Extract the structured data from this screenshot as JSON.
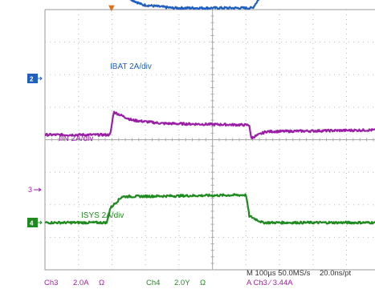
{
  "chart_data": {
    "type": "line",
    "time_per_div": "100µs",
    "sample_rate": "50.0MS/s",
    "resolution": "20.0ns/pt",
    "series": [
      {
        "name": "IBAT 2A/div",
        "color": "#1f5fbf",
        "marker": "2",
        "points": [
          [
            0,
            4.6
          ],
          [
            2.1,
            4.55
          ],
          [
            2.9,
            4.15
          ],
          [
            3.8,
            4.05
          ],
          [
            6.2,
            4.05
          ],
          [
            6.4,
            4.35
          ],
          [
            6.9,
            4.5
          ],
          [
            10,
            4.55
          ]
        ]
      },
      {
        "name": "IIN 2A/div",
        "color": "#9b1fa6",
        "marker": "",
        "points": [
          [
            0,
            0.15
          ],
          [
            1.95,
            0.15
          ],
          [
            2.05,
            0.85
          ],
          [
            2.6,
            0.6
          ],
          [
            3.5,
            0.5
          ],
          [
            6.1,
            0.45
          ],
          [
            6.15,
            0.05
          ],
          [
            6.6,
            0.25
          ],
          [
            10,
            0.3
          ]
        ]
      },
      {
        "name": "ISYS 2A/div",
        "color": "#1f8a1f",
        "marker": "4",
        "points": [
          [
            0,
            -2.55
          ],
          [
            1.85,
            -2.55
          ],
          [
            1.95,
            -2.1
          ],
          [
            2.3,
            -1.75
          ],
          [
            6.0,
            -1.7
          ],
          [
            6.1,
            -2.35
          ],
          [
            6.5,
            -2.55
          ],
          [
            10,
            -2.55
          ]
        ]
      }
    ],
    "ch3_marker": "3",
    "trigger_marker": "▼",
    "readout": {
      "ch3_label": "Ch3",
      "ch3_scale": "2.0A",
      "ch3_unit": "Ω",
      "ch4_label": "Ch4",
      "ch4_scale": "2.0Y",
      "ch4_unit": "Ω",
      "timebase": "M 100µs 50.0MS/s",
      "resolution": "20.0ns/pt",
      "trigger": "A Ch3 ⁄ 3.44A"
    },
    "grid": true
  }
}
